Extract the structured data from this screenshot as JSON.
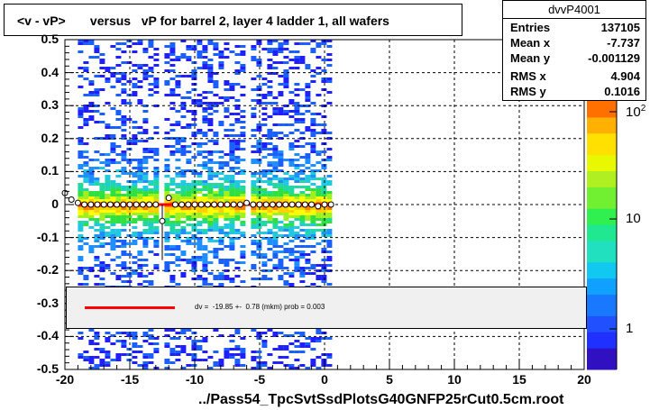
{
  "title": "<v - vP>       versus   vP for barrel 2, layer 4 ladder 1, all wafers",
  "stats": {
    "name": "dvvP4001",
    "rows": [
      {
        "label": "Entries",
        "value": "137105"
      },
      {
        "label": "Mean x",
        "value": "-7.737"
      },
      {
        "label": "Mean y",
        "value": "-0.001129"
      },
      {
        "label": "RMS x",
        "value": "4.904"
      },
      {
        "label": "RMS y",
        "value": "0.1016"
      }
    ]
  },
  "fit_text": "dv =  -19.85 +-  0.78 (mkm) prob = 0.003",
  "footer": "../Pass54_TpcSvtSsdPlotsG40GNFP25rCut0.5cm.root",
  "colors": {
    "fit_line": "#ff0000",
    "profile_marker": "#000000"
  },
  "chart_data": {
    "type": "heatmap",
    "title": "<v - vP>       versus   vP for barrel 2, layer 4 ladder 1, all wafers",
    "xlabel": "",
    "ylabel": "",
    "xlim": [
      -20,
      20
    ],
    "ylim": [
      -0.5,
      0.5
    ],
    "x_ticks": [
      "-20",
      "-15",
      "-10",
      "-5",
      "0",
      "5",
      "10",
      "15",
      "20"
    ],
    "y_ticks": [
      "0.5",
      "0.4",
      "0.3",
      "0.2",
      "0.1",
      "0",
      "-0.1",
      "-0.2",
      "-0.3",
      "-0.4",
      "-0.5"
    ],
    "z_scale": "log",
    "z_ticks": [
      "1",
      "10",
      "10^2"
    ],
    "grid": true,
    "data_x_range": [
      -19,
      0.5
    ],
    "profile": {
      "x": [
        -20.0,
        -19.5,
        -19.0,
        -18.5,
        -18.0,
        -17.5,
        -17.0,
        -16.5,
        -16.0,
        -15.5,
        -15.0,
        -14.5,
        -14.0,
        -13.5,
        -13.0,
        -12.5,
        -12.0,
        -11.5,
        -11.0,
        -10.5,
        -10.0,
        -9.5,
        -9.0,
        -8.5,
        -8.0,
        -7.5,
        -7.0,
        -6.5,
        -6.0,
        -5.5,
        -5.0,
        -4.5,
        -4.0,
        -3.5,
        -3.0,
        -2.5,
        -2.0,
        -1.5,
        -1.0,
        -0.5,
        0.0,
        0.5
      ],
      "y": [
        0.035,
        0.015,
        0.005,
        0.0,
        0.0,
        0.0,
        0.0,
        0.0,
        0.0,
        0.0,
        0.0,
        0.0,
        0.0,
        0.0,
        0.0,
        -0.05,
        0.02,
        0.0,
        0.0,
        0.0,
        0.0,
        0.0,
        0.0,
        0.0,
        0.0,
        0.0,
        0.0,
        0.0,
        0.005,
        0.0,
        0.0,
        0.0,
        0.0,
        0.0,
        0.0,
        0.0,
        0.0,
        0.0,
        0.0,
        -0.005,
        0.0,
        0.0
      ],
      "err": [
        0.0,
        0.0,
        0.0,
        0.0,
        0.0,
        0.0,
        0.0,
        0.0,
        0.0,
        0.0,
        0.0,
        0.0,
        0.0,
        0.0,
        0.0,
        0.05,
        0.0,
        0.0,
        0.0,
        0.0,
        0.0,
        0.0,
        0.0,
        0.0,
        0.0,
        0.0,
        0.0,
        0.0,
        0.0,
        0.0,
        0.0,
        0.0,
        0.0,
        0.0,
        0.0,
        0.0,
        0.0,
        0.0,
        0.0,
        0.0,
        0.0,
        0.0
      ]
    },
    "fit": {
      "y": -2e-05,
      "x_range": [
        -19,
        0.5
      ]
    }
  }
}
